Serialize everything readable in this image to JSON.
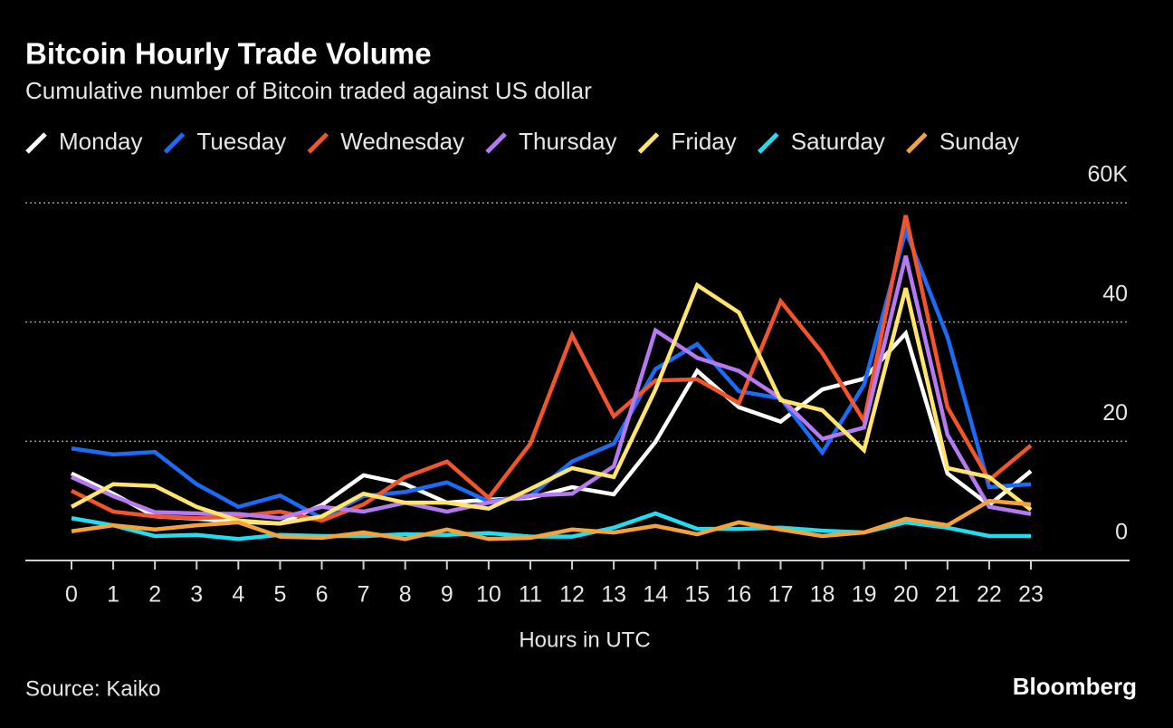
{
  "chart_data": {
    "type": "line",
    "title": "Bitcoin Hourly Trade Volume",
    "subtitle": "Cumulative number of Bitcoin traded against US dollar",
    "x_label": "Hours in UTC",
    "source": "Source: Kaiko",
    "brand": "Bloomberg",
    "x": [
      0,
      1,
      2,
      3,
      4,
      5,
      6,
      7,
      8,
      9,
      10,
      11,
      12,
      13,
      14,
      15,
      16,
      17,
      18,
      19,
      20,
      21,
      22,
      23
    ],
    "xlim": [
      0,
      23
    ],
    "xticks": [
      0,
      1,
      2,
      3,
      4,
      5,
      6,
      7,
      8,
      9,
      10,
      11,
      12,
      13,
      14,
      15,
      16,
      17,
      18,
      19,
      20,
      21,
      22,
      23
    ],
    "ylim": [
      0,
      60
    ],
    "yticks": [
      0,
      20,
      40,
      {
        "value": 60,
        "label": "60K"
      }
    ],
    "grid": true,
    "legend": "top",
    "series": [
      {
        "name": "Monday",
        "color": "#ffffff",
        "values": [
          14.6,
          11.2,
          7.4,
          7,
          6.5,
          6.2,
          9.3,
          14.3,
          12.8,
          9.7,
          10.2,
          10.5,
          12.3,
          11.1,
          19.9,
          31.8,
          25.7,
          23.3,
          28.7,
          30.5,
          38.1,
          14.6,
          9.3,
          15
        ]
      },
      {
        "name": "Tuesday",
        "color": "#1a6cf5",
        "values": [
          18.8,
          17.8,
          18.2,
          12.8,
          9,
          10.9,
          7.1,
          10.8,
          11.5,
          13.1,
          9.9,
          10.8,
          16.6,
          19.6,
          32.1,
          36.3,
          28.4,
          27.2,
          18.1,
          29.5,
          55.3,
          37.5,
          12.3,
          12.8
        ]
      },
      {
        "name": "Wednesday",
        "color": "#f2552c",
        "values": [
          11.7,
          8.2,
          7.4,
          7.1,
          7.4,
          8.2,
          6.7,
          9.4,
          14,
          16.6,
          10.5,
          19.6,
          37.8,
          24.2,
          30.2,
          30.4,
          26.4,
          43.5,
          34.8,
          23.4,
          57.9,
          25.7,
          13.5,
          19.3
        ]
      },
      {
        "name": "Thursday",
        "color": "#b57af2",
        "values": [
          14,
          10.8,
          8.1,
          7.9,
          7.8,
          7.1,
          9,
          8.2,
          9.7,
          8.2,
          9.7,
          10.9,
          11.2,
          15.8,
          38.6,
          34,
          31.8,
          27.2,
          20.4,
          22.3,
          51.1,
          21.1,
          9,
          7.8
        ]
      },
      {
        "name": "Friday",
        "color": "#ffe56b",
        "values": [
          9,
          12.8,
          12.5,
          9,
          6.7,
          6.2,
          7.4,
          11.2,
          9.7,
          9.7,
          8.7,
          12,
          15.5,
          14,
          28.7,
          46.2,
          41.6,
          26.9,
          25.2,
          18.5,
          45.7,
          15.5,
          14,
          8.5
        ]
      },
      {
        "name": "Saturday",
        "color": "#22dcf0",
        "values": [
          7.1,
          5.9,
          4.1,
          4.3,
          3.6,
          4.3,
          4.1,
          4.1,
          4.4,
          4.3,
          4.6,
          4,
          4,
          5.5,
          7.9,
          5.3,
          5.3,
          5.5,
          5,
          4.7,
          6.4,
          5.5,
          4.1,
          4.1
        ]
      },
      {
        "name": "Sunday",
        "color": "#f5a23a",
        "values": [
          4.9,
          5.9,
          5.2,
          5.9,
          6.4,
          4,
          3.8,
          4.7,
          3.6,
          5.2,
          3.6,
          3.8,
          5.2,
          4.7,
          5.8,
          4.4,
          6.4,
          5.2,
          4.1,
          4.7,
          7,
          5.9,
          10,
          9.4
        ]
      }
    ]
  }
}
